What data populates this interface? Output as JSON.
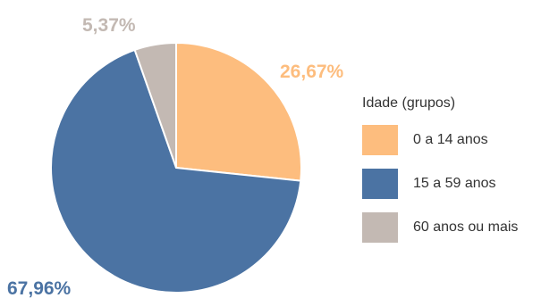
{
  "chart_data": {
    "type": "pie",
    "title": "",
    "legend_title": "Idade (grupos)",
    "legend_position": "right",
    "slices": [
      {
        "label": "0 a 14 anos",
        "value": 26.67,
        "display": "26,67%",
        "color": "#fdbd7e"
      },
      {
        "label": "15 a 59 anos",
        "value": 67.96,
        "display": "67,96%",
        "color": "#4b73a3"
      },
      {
        "label": "60 anos ou mais",
        "value": 5.37,
        "display": "5,37%",
        "color": "#c3b9b3"
      }
    ]
  }
}
